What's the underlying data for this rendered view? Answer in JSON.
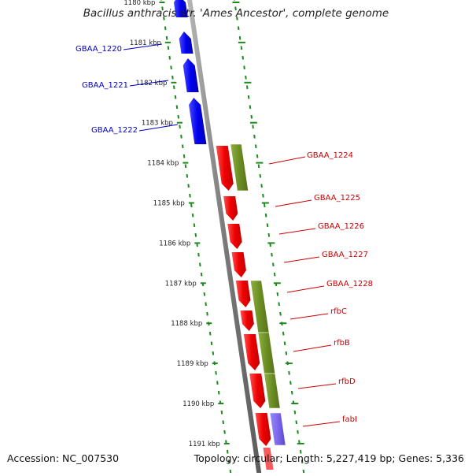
{
  "title": "Bacillus anthracis str. 'Ames Ancestor', complete genome",
  "footer": {
    "accession": "Accession: NC_007530",
    "stats": "Topology: circular; Length: 5,227,419 bp; Genes: 5,336"
  },
  "colors": {
    "backbone": "#808080",
    "tick": "#1e8a1e",
    "blue_gene": "#0000ee",
    "red_gene": "#ee0000",
    "olive_feature": "#6b8e23",
    "purple_feature": "#7b68ee",
    "blue_label": "#0000cc",
    "red_label": "#cc0000"
  },
  "map": {
    "unit": "kbp",
    "kbp_ticks": [
      "1180 kbp",
      "1181 kbp",
      "1182 kbp",
      "1183 kbp",
      "1184 kbp",
      "1185 kbp",
      "1186 kbp",
      "1187 kbp",
      "1188 kbp",
      "1189 kbp",
      "1190 kbp",
      "1191 kbp"
    ],
    "genes": [
      {
        "name": "",
        "strand": "forward",
        "color": "blue"
      },
      {
        "name": "GBAA_1220",
        "strand": "forward",
        "color": "blue"
      },
      {
        "name": "GBAA_1221",
        "strand": "forward",
        "color": "blue"
      },
      {
        "name": "GBAA_1222",
        "strand": "forward",
        "color": "blue"
      },
      {
        "name": "GBAA_1224",
        "strand": "reverse",
        "color": "red"
      },
      {
        "name": "GBAA_1225",
        "strand": "reverse",
        "color": "red"
      },
      {
        "name": "GBAA_1226",
        "strand": "reverse",
        "color": "red"
      },
      {
        "name": "GBAA_1227",
        "strand": "reverse",
        "color": "red"
      },
      {
        "name": "GBAA_1228",
        "strand": "reverse",
        "color": "red"
      },
      {
        "name": "rfbC",
        "strand": "reverse",
        "color": "red"
      },
      {
        "name": "rfbB",
        "strand": "reverse",
        "color": "red"
      },
      {
        "name": "rfbD",
        "strand": "reverse",
        "color": "red"
      },
      {
        "name": "fabI",
        "strand": "reverse",
        "color": "red"
      }
    ]
  }
}
